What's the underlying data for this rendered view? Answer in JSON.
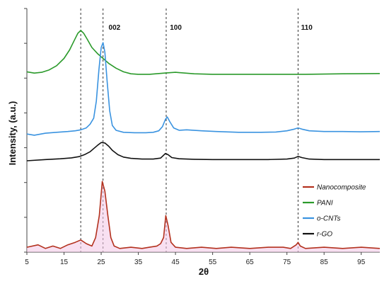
{
  "chart_data": {
    "type": "line",
    "xlabel": "2θ",
    "ylabel": "Intensity, (a.u.)",
    "xlim": [
      5,
      100
    ],
    "ylim": [
      0,
      100
    ],
    "x_ticks": [
      5,
      15,
      25,
      35,
      45,
      55,
      65,
      75,
      85,
      95
    ],
    "grid": false,
    "legend_position": "bottom-right",
    "reference_lines": [
      19.5,
      25.5,
      42.5,
      78
    ],
    "annotations": [
      {
        "text": "002",
        "x": 27
      },
      {
        "text": "100",
        "x": 43.5
      },
      {
        "text": "110",
        "x": 78.8
      }
    ],
    "series": [
      {
        "name": "Nanocomposite",
        "color": "#b3311e",
        "fill": "#f3c6e6",
        "x": [
          5,
          8,
          10,
          12,
          14,
          16,
          18,
          19.5,
          21,
          22.5,
          23.5,
          24.5,
          25.3,
          26,
          26.8,
          27.6,
          28.5,
          30,
          33,
          36,
          38,
          40,
          41,
          41.8,
          42.4,
          43,
          43.8,
          45,
          48,
          52,
          56,
          60,
          65,
          70,
          74,
          76,
          77.5,
          78,
          78.6,
          80,
          85,
          90,
          95,
          100
        ],
        "y": [
          2,
          3,
          1.5,
          2.5,
          1.5,
          3,
          4,
          5,
          3.5,
          2.5,
          6,
          15,
          29,
          25,
          15,
          6,
          2.5,
          1.5,
          2,
          1.5,
          2,
          2.5,
          3.5,
          6,
          15,
          11,
          4,
          2,
          1.5,
          2,
          1.5,
          2,
          1.5,
          2,
          2,
          1.5,
          3,
          4,
          2.5,
          1.5,
          2,
          1.5,
          2,
          1.5
        ]
      },
      {
        "name": "PANI",
        "color": "#2b9a2b",
        "x": [
          5,
          7,
          9,
          11,
          13,
          15,
          16.5,
          17.8,
          18.7,
          19.5,
          20.3,
          21.2,
          22.5,
          24,
          25.5,
          27,
          29,
          31,
          33,
          35,
          38,
          42,
          45,
          50,
          55,
          60,
          70,
          80,
          90,
          100
        ],
        "y": [
          74,
          73.5,
          73.8,
          74.8,
          76.5,
          79.5,
          83,
          87,
          89.8,
          91,
          89.8,
          87.5,
          84,
          81.5,
          79.5,
          77.5,
          75.5,
          74,
          73.2,
          73,
          73,
          73.5,
          73.8,
          73.2,
          73,
          73,
          73,
          73,
          73.2,
          73.3
        ]
      },
      {
        "name": "o-CNTs",
        "color": "#3a93e0",
        "x": [
          5,
          7,
          10,
          13,
          16,
          18,
          19.5,
          21,
          22,
          23,
          23.7,
          24.4,
          25,
          25.5,
          26,
          26.6,
          27.3,
          28,
          29,
          31,
          34,
          37,
          39,
          40.5,
          41.5,
          42.3,
          42.8,
          43.5,
          44.5,
          46,
          48,
          52,
          56,
          62,
          68,
          72,
          75,
          77,
          78,
          79,
          81,
          85,
          90,
          95,
          100
        ],
        "y": [
          48.5,
          48,
          48.8,
          49.2,
          49.5,
          49.8,
          50.2,
          51,
          52.5,
          55,
          62,
          75,
          84,
          86,
          82,
          70,
          58,
          52,
          50,
          49.2,
          49,
          49,
          49.2,
          49.8,
          51.5,
          54.5,
          55.5,
          53.5,
          51,
          50,
          50.2,
          49.8,
          49.5,
          49.2,
          49.2,
          49.3,
          49.8,
          50.5,
          51,
          50.5,
          49.8,
          49.5,
          49.5,
          49.4,
          49.5
        ]
      },
      {
        "name": "r-GO",
        "color": "#111111",
        "x": [
          5,
          10,
          14,
          17,
          19,
          20.5,
          22,
          23,
          24,
          25,
          26,
          27,
          28,
          29.5,
          31,
          33,
          36,
          39,
          41,
          42.3,
          43,
          44,
          46,
          50,
          55,
          60,
          65,
          70,
          75,
          77,
          78,
          79,
          81,
          85,
          90,
          95,
          100
        ],
        "y": [
          37.5,
          38,
          38.3,
          38.7,
          39.2,
          40,
          41.2,
          42.5,
          43.8,
          45,
          44.8,
          43.5,
          41.8,
          40,
          39,
          38.5,
          38.2,
          38.2,
          38.6,
          40.5,
          40,
          38.8,
          38.3,
          38.1,
          38,
          38,
          38,
          38,
          38.2,
          38.6,
          39.3,
          38.8,
          38.2,
          38,
          38,
          38,
          38
        ]
      }
    ]
  }
}
